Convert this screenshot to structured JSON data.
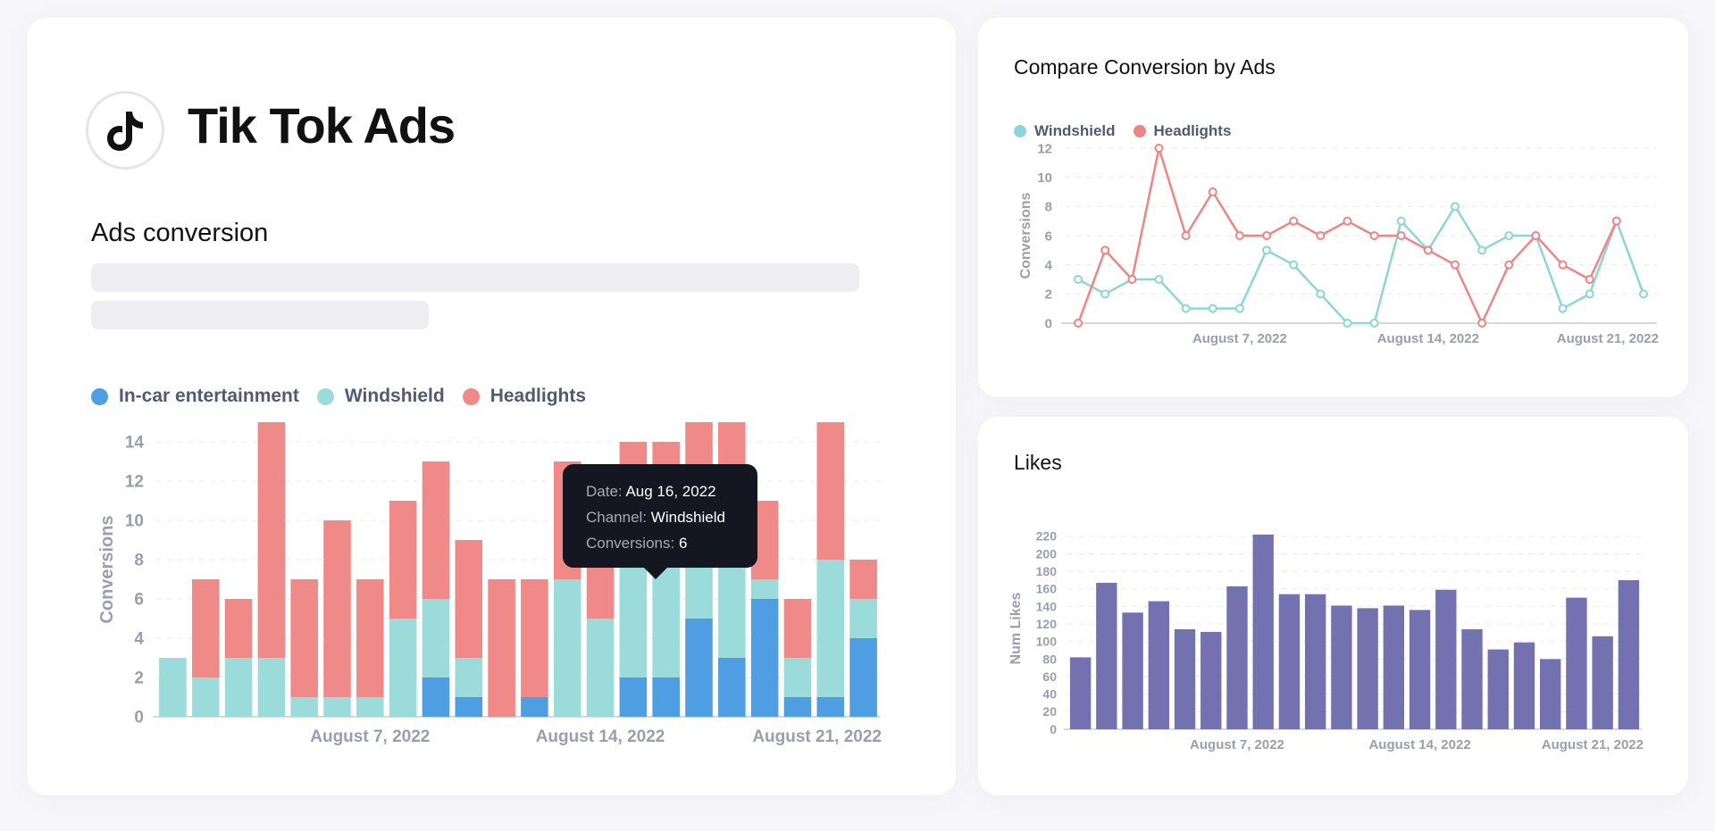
{
  "app": {
    "title": "Tik Tok Ads",
    "logo_icon": "tiktok-logo-icon"
  },
  "main": {
    "section_title": "Ads conversion",
    "legend": [
      {
        "label": "In-car entertainment",
        "color": "#4f9de3"
      },
      {
        "label": "Windshield",
        "color": "#9bdcdb"
      },
      {
        "label": "Headlights",
        "color": "#ef8a88"
      }
    ]
  },
  "tooltip": {
    "date_key": "Date:",
    "date_value": "Aug 16, 2022",
    "channel_key": "Channel:",
    "channel_value": "Windshield",
    "conv_key": "Conversions:",
    "conv_value": "6"
  },
  "compare": {
    "title": "Compare Conversion by Ads",
    "legend": [
      {
        "label": "Windshield",
        "color": "#8ed5d6"
      },
      {
        "label": "Headlights",
        "color": "#ef8583"
      }
    ]
  },
  "likes": {
    "title": "Likes"
  },
  "chart_data": [
    {
      "type": "bar",
      "stacked": true,
      "ylabel": "Conversions",
      "ylim": [
        0,
        15
      ],
      "yticks": [
        0,
        2,
        4,
        6,
        8,
        10,
        12,
        14
      ],
      "xtick_labels": [
        {
          "label": "August 7, 2022",
          "index": 6
        },
        {
          "label": "August 14, 2022",
          "index": 13
        },
        {
          "label": "August 21, 2022",
          "index": 20
        }
      ],
      "series": [
        {
          "name": "In-car entertainment",
          "color": "#4f9de3",
          "values": [
            0,
            0,
            0,
            0,
            0,
            0,
            0,
            0,
            2,
            1,
            0,
            1,
            0,
            0,
            2,
            2,
            5,
            3,
            6,
            1,
            1,
            4
          ]
        },
        {
          "name": "Windshield",
          "color": "#9bdcdb",
          "values": [
            3,
            2,
            3,
            3,
            1,
            1,
            1,
            5,
            4,
            2,
            0,
            0,
            7,
            5,
            6,
            6,
            3,
            5,
            1,
            2,
            7,
            2
          ]
        },
        {
          "name": "Headlights",
          "color": "#ef8a88",
          "values": [
            0,
            5,
            3,
            12,
            6,
            9,
            6,
            6,
            7,
            6,
            7,
            6,
            6,
            3,
            6,
            6,
            7,
            7,
            4,
            3,
            7,
            2
          ]
        }
      ],
      "grid": true
    },
    {
      "type": "line",
      "ylabel": "Conversions",
      "ylim": [
        0,
        12
      ],
      "yticks": [
        0,
        2,
        4,
        6,
        8,
        10,
        12
      ],
      "xtick_labels": [
        {
          "label": "August 7, 2022",
          "index": 6
        },
        {
          "label": "August 14, 2022",
          "index": 13
        },
        {
          "label": "August 21, 2022",
          "index": 20
        }
      ],
      "series": [
        {
          "name": "Windshield",
          "color": "#8ed5d6",
          "values": [
            3,
            2,
            3,
            3,
            1,
            1,
            1,
            5,
            4,
            2,
            0,
            0,
            7,
            5,
            8,
            5,
            6,
            6,
            1,
            2,
            7,
            2
          ]
        },
        {
          "name": "Headlights",
          "color": "#ef8583",
          "values": [
            0,
            5,
            3,
            12,
            6,
            9,
            6,
            6,
            7,
            6,
            7,
            6,
            6,
            5,
            4,
            0,
            4,
            6,
            4,
            3,
            7,
            null
          ]
        }
      ],
      "grid": true
    },
    {
      "type": "bar",
      "ylabel": "Num Likes",
      "ylim": [
        0,
        230
      ],
      "yticks": [
        0,
        20,
        40,
        60,
        80,
        100,
        120,
        140,
        160,
        180,
        200,
        220
      ],
      "xtick_labels": [
        {
          "label": "August 7, 2022",
          "index": 6
        },
        {
          "label": "August 14, 2022",
          "index": 13
        },
        {
          "label": "August 21, 2022",
          "index": 20
        }
      ],
      "series": [
        {
          "name": "Num Likes",
          "color": "#7471b1",
          "values": [
            82,
            167,
            133,
            146,
            114,
            111,
            163,
            222,
            154,
            154,
            141,
            138,
            141,
            136,
            159,
            114,
            91,
            99,
            80,
            150,
            106,
            170
          ]
        }
      ],
      "grid": true
    }
  ]
}
